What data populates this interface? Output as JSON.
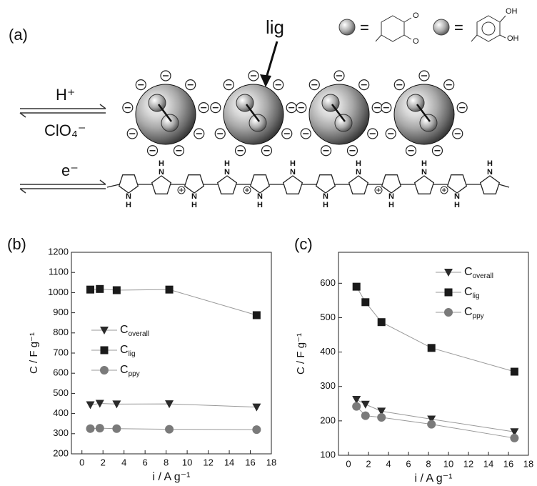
{
  "diagram": {
    "panel_label": "(a)",
    "lig_label": "lig",
    "equals": "=",
    "quinone_o": "O",
    "catechol_oh": "OH",
    "proton": "H⁺",
    "anion": "ClO₄⁻",
    "electron": "e⁻",
    "nitrogen": "N",
    "hydrogen": "H"
  },
  "chart_data": [
    {
      "type": "line",
      "panel_label": "(b)",
      "x_label": "i / A g⁻¹",
      "y_label": "C / F g⁻¹",
      "x": [
        0.8,
        1.7,
        3.3,
        8.3,
        16.6
      ],
      "series": [
        {
          "name": "Coverall",
          "color": "#2a2a2a",
          "marker": "triangle-down",
          "values": [
            443,
            450,
            447,
            448,
            432
          ]
        },
        {
          "name": "Clig",
          "color": "#1a1a1a",
          "marker": "square",
          "values": [
            1015,
            1018,
            1012,
            1015,
            888
          ]
        },
        {
          "name": "Cppy",
          "color": "#7a7a7a",
          "marker": "circle",
          "values": [
            325,
            327,
            325,
            322,
            320
          ]
        }
      ],
      "xlim": [
        -1,
        18
      ],
      "xticks": [
        0,
        2,
        4,
        6,
        8,
        10,
        12,
        14,
        16,
        18
      ],
      "ylim": [
        200,
        1200
      ],
      "yticks": [
        200,
        300,
        400,
        500,
        600,
        700,
        800,
        900,
        1000,
        1100,
        1200
      ],
      "legend_position": "center left"
    },
    {
      "type": "line",
      "panel_label": "(c)",
      "x_label": "i / A g⁻¹",
      "y_label": "C / F g⁻¹",
      "x": [
        0.8,
        1.7,
        3.3,
        8.3,
        16.6
      ],
      "series": [
        {
          "name": "Coverall",
          "color": "#2a2a2a",
          "marker": "triangle-down",
          "values": [
            262,
            248,
            228,
            205,
            168
          ]
        },
        {
          "name": "Clig",
          "color": "#1a1a1a",
          "marker": "square",
          "values": [
            590,
            545,
            487,
            412,
            343
          ]
        },
        {
          "name": "Cppy",
          "color": "#7a7a7a",
          "marker": "circle",
          "values": [
            242,
            215,
            210,
            190,
            150
          ]
        }
      ],
      "xlim": [
        -1,
        18
      ],
      "xticks": [
        0,
        2,
        4,
        6,
        8,
        10,
        12,
        14,
        16,
        18
      ],
      "ylim": [
        100,
        690
      ],
      "yticks": [
        100,
        200,
        300,
        400,
        500,
        600
      ],
      "legend_position": "upper right"
    }
  ]
}
